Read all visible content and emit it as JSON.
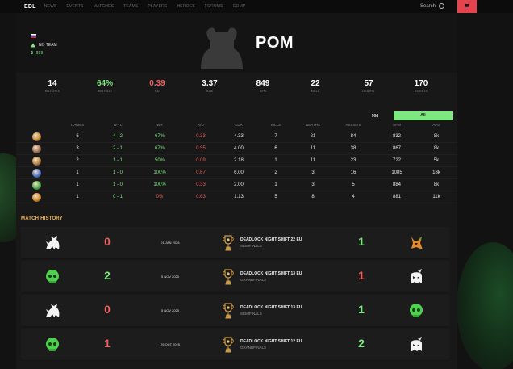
{
  "nav": {
    "brand": "EDL",
    "items": [
      "NEWS",
      "EVENTS",
      "MATCHES",
      "TEAMS",
      "PLAYERS",
      "HEROES",
      "FORUMS",
      "COMP"
    ],
    "search_label": "Search",
    "icons": {
      "search": "search-icon",
      "flag": "flag-icon"
    },
    "accent": "#e5444f"
  },
  "profile": {
    "name": "POM",
    "team": "NO TEAM",
    "money": "999",
    "country": "RU"
  },
  "stats": [
    {
      "value": "14",
      "label": "MATCHES",
      "color": "#ffffff"
    },
    {
      "value": "64%",
      "label": "WIN RATE",
      "color": "#7de87f"
    },
    {
      "value": "0.39",
      "label": "KD",
      "color": "#ee5f5f"
    },
    {
      "value": "3.37",
      "label": "KDA",
      "color": "#ffffff"
    },
    {
      "value": "849",
      "label": "SPM",
      "color": "#ffffff"
    },
    {
      "value": "22",
      "label": "KILLS",
      "color": "#ffffff"
    },
    {
      "value": "57",
      "label": "DEATHS",
      "color": "#ffffff"
    },
    {
      "value": "170",
      "label": "ASSISTS",
      "color": "#ffffff"
    }
  ],
  "period": {
    "option_90d": "90d",
    "option_all": "All",
    "selected": "All"
  },
  "hero_table": {
    "headers": [
      "GAMES",
      "W - L",
      "WR",
      "K/D",
      "KDA",
      "KILLS",
      "DEATHS",
      "ASSISTS",
      "SPM",
      "APD"
    ],
    "rows": [
      {
        "hero_color": "#c98a3a",
        "games": "6",
        "wl": "4 - 2",
        "wr": "67%",
        "kd": "0.33",
        "kda": "4.33",
        "kills": "7",
        "deaths": "21",
        "assists": "84",
        "spm": "832",
        "apd": "8k",
        "wl_pos": true,
        "wr_pos": true
      },
      {
        "hero_color": "#a0705a",
        "games": "3",
        "wl": "2 - 1",
        "wr": "67%",
        "kd": "0.55",
        "kda": "4.00",
        "kills": "6",
        "deaths": "11",
        "assists": "38",
        "spm": "867",
        "apd": "8k",
        "wl_pos": true,
        "wr_pos": true
      },
      {
        "hero_color": "#b5813f",
        "games": "2",
        "wl": "1 - 1",
        "wr": "50%",
        "kd": "0.09",
        "kda": "2.18",
        "kills": "1",
        "deaths": "11",
        "assists": "23",
        "spm": "722",
        "apd": "5k",
        "wl_pos": true,
        "wr_pos": true
      },
      {
        "hero_color": "#4a74c9",
        "games": "1",
        "wl": "1 - 0",
        "wr": "100%",
        "kd": "0.67",
        "kda": "6.00",
        "kills": "2",
        "deaths": "3",
        "assists": "16",
        "spm": "1085",
        "apd": "18k",
        "wl_pos": true,
        "wr_pos": true
      },
      {
        "hero_color": "#4aa84a",
        "games": "1",
        "wl": "1 - 0",
        "wr": "100%",
        "kd": "0.33",
        "kda": "2.00",
        "kills": "1",
        "deaths": "3",
        "assists": "5",
        "spm": "884",
        "apd": "8k",
        "wl_pos": true,
        "wr_pos": true
      },
      {
        "hero_color": "#d08a2a",
        "games": "1",
        "wl": "0 - 1",
        "wr": "0%",
        "kd": "0.63",
        "kda": "1.13",
        "kills": "5",
        "deaths": "8",
        "assists": "4",
        "spm": "881",
        "apd": "11k",
        "wl_pos": true,
        "wr_pos": false
      }
    ]
  },
  "match_history": {
    "title": "MATCH HISTORY",
    "matches": [
      {
        "team_a": "dragon-logo",
        "score_a": "0",
        "date": "21 JAN 2026",
        "tournament": "DEADLOCK NIGHT SHIFT 22 EU",
        "stage": "SEMIFINALS",
        "score_b": "1",
        "team_b": "fox-logo",
        "a_win": false
      },
      {
        "team_a": "green-skull-logo",
        "score_a": "2",
        "date": "5 NOV 2025",
        "tournament": "DEADLOCK NIGHT SHIFT 13 EU",
        "stage": "GRANDFINALS",
        "score_b": "1",
        "team_b": "ghost-logo",
        "a_win": true
      },
      {
        "team_a": "dragon-logo",
        "score_a": "0",
        "date": "5 NOV 2025",
        "tournament": "DEADLOCK NIGHT SHIFT 13 EU",
        "stage": "SEMIFINALS",
        "score_b": "1",
        "team_b": "green-skull-logo",
        "a_win": false
      },
      {
        "team_a": "green-skull-logo",
        "score_a": "1",
        "date": "29 OCT 2025",
        "tournament": "DEADLOCK NIGHT SHIFT 12 EU",
        "stage": "GRANDFINALS",
        "score_b": "2",
        "team_b": "ghost-logo",
        "a_win": false
      }
    ]
  },
  "colors": {
    "win": "#7de87f",
    "loss": "#ee5f5f",
    "accent_gold": "#f0b350"
  }
}
